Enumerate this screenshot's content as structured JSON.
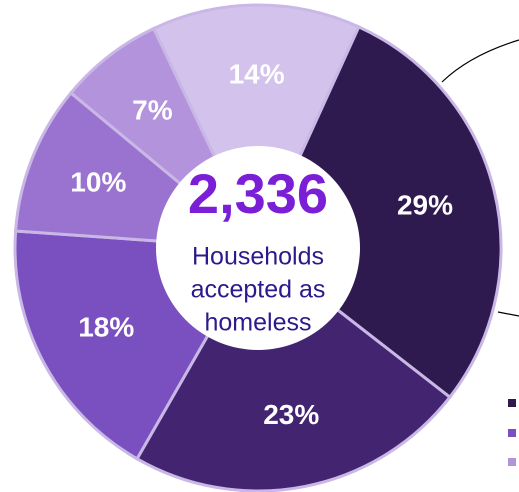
{
  "chart_data": {
    "type": "donut",
    "values": [
      29,
      23,
      18,
      10,
      7,
      14
    ],
    "value_labels": [
      "29%",
      "23%",
      "18%",
      "10%",
      "7%",
      "14%"
    ],
    "colors": [
      "#2e1a4f",
      "#432470",
      "#7a4fc0",
      "#9a72cf",
      "#b293dc",
      "#d3c2ec"
    ],
    "center_value": "2,336",
    "center_text": [
      "Households",
      "accepted as",
      "homeless"
    ]
  }
}
